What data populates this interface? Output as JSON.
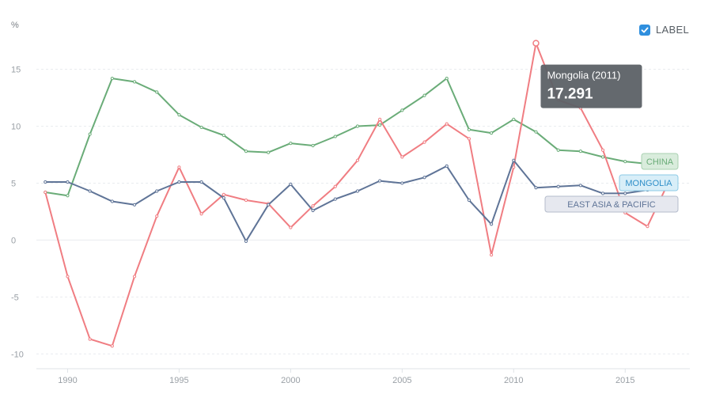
{
  "chart_data": {
    "type": "line",
    "unit_label": "%",
    "x": [
      1989,
      1990,
      1991,
      1992,
      1993,
      1994,
      1995,
      1996,
      1997,
      1998,
      1999,
      2000,
      2001,
      2002,
      2003,
      2004,
      2005,
      2006,
      2007,
      2008,
      2009,
      2010,
      2011,
      2012,
      2013,
      2014,
      2015,
      2016,
      2017
    ],
    "xlim": [
      1988.6,
      2017.9
    ],
    "x_ticks": [
      1990,
      1995,
      2000,
      2005,
      2010,
      2015
    ],
    "ylim": [
      -11.3,
      19
    ],
    "y_ticks": [
      15,
      10,
      5,
      0,
      -5,
      -10
    ],
    "grid": true,
    "series": [
      {
        "name": "CHINA",
        "color": "#6aac78",
        "label_bg": "#d9ecdc",
        "label_border": "#a9d1b1",
        "values": [
          4.2,
          3.9,
          9.3,
          14.2,
          13.9,
          13.0,
          11.0,
          9.9,
          9.2,
          7.8,
          7.7,
          8.5,
          8.3,
          9.1,
          10.0,
          10.1,
          11.4,
          12.7,
          14.2,
          9.7,
          9.4,
          10.6,
          9.5,
          7.9,
          7.8,
          7.3,
          6.9,
          6.7,
          6.8
        ]
      },
      {
        "name": "MONGOLIA",
        "color": "#f07d82",
        "label_bg": "#d8eef8",
        "label_border": "#8dcbe6",
        "label_text_color": "#2f8fc8",
        "values": [
          4.2,
          -3.2,
          -8.7,
          -9.3,
          -3.2,
          2.1,
          6.4,
          2.3,
          4.0,
          3.5,
          3.2,
          1.1,
          3.0,
          4.7,
          7.0,
          10.6,
          7.3,
          8.6,
          10.2,
          8.9,
          -1.3,
          6.4,
          17.291,
          12.3,
          11.6,
          7.9,
          2.4,
          1.2,
          5.3
        ]
      },
      {
        "name": "EAST ASIA & PACIFIC",
        "color": "#5f7497",
        "label_bg": "#e6e8ef",
        "label_border": "#b4bccb",
        "values": [
          5.1,
          5.1,
          4.3,
          3.4,
          3.1,
          4.3,
          5.1,
          5.1,
          3.7,
          -0.1,
          3.1,
          4.9,
          2.6,
          3.6,
          4.3,
          5.2,
          5.0,
          5.5,
          6.5,
          3.5,
          1.4,
          7.0,
          4.6,
          4.7,
          4.8,
          4.1,
          4.1,
          4.4,
          4.6
        ]
      }
    ],
    "tooltip": {
      "title": "Mongolia (2011)",
      "value": "17.291",
      "series_index": 1,
      "x": 2011
    }
  },
  "controls": {
    "label_toggle": {
      "text": "LABEL",
      "checked": true
    }
  }
}
